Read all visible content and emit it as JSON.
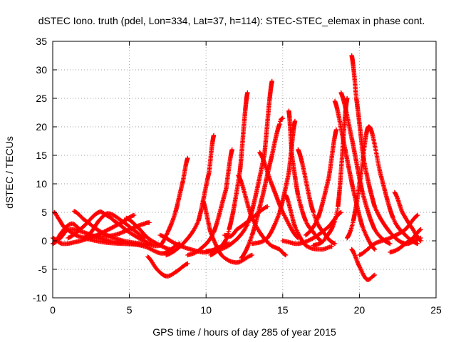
{
  "chart_data": {
    "type": "scatter",
    "title": "dSTEC Iono. truth (pdel, Lon=334, Lat=37, h=114): STEC-STEC_elemax in phase cont.",
    "xlabel": "GPS time / hours of day 285 of year 2015",
    "ylabel": "dSTEC  / TECUs",
    "xlim": [
      0,
      25
    ],
    "ylim": [
      -10,
      35
    ],
    "xticks": [
      "0",
      "5",
      "10",
      "15",
      "20",
      "25"
    ],
    "yticks": [
      "-10",
      "-5",
      "0",
      "5",
      "10",
      "15",
      "20",
      "25",
      "30",
      "35"
    ],
    "grid": true,
    "marker": "+",
    "color": "#ff0000",
    "arcs": [
      {
        "x": [
          0.0,
          0.6,
          1.5,
          2.5,
          3.5,
          4.5,
          5.3
        ],
        "y": [
          0.5,
          -0.5,
          -0.2,
          0.6,
          1.8,
          3.2,
          4.5
        ]
      },
      {
        "x": [
          0.0,
          0.5,
          1.0,
          2.0,
          3.0,
          4.0,
          5.0,
          6.0,
          7.2,
          8.3
        ],
        "y": [
          -0.5,
          0.5,
          2.0,
          1.5,
          0.5,
          -0.2,
          -0.5,
          -1.0,
          -2.2,
          -0.5
        ]
      },
      {
        "x": [
          0.1,
          0.3,
          0.7,
          1.5,
          2.5,
          3.5,
          4.5,
          5.5,
          6.2
        ],
        "y": [
          5.0,
          4.2,
          2.5,
          1.0,
          0.2,
          -0.3,
          -0.5,
          -0.6,
          -0.8
        ]
      },
      {
        "x": [
          0.2,
          0.5,
          0.9,
          1.3,
          1.8
        ],
        "y": [
          0.0,
          1.2,
          2.5,
          3.0,
          2.0
        ]
      },
      {
        "x": [
          1.4,
          2.0,
          3.0,
          4.0,
          5.0,
          5.5,
          6.0
        ],
        "y": [
          5.2,
          3.8,
          1.8,
          0.5,
          -0.2,
          -0.4,
          -0.6
        ]
      },
      {
        "x": [
          1.0,
          2.0,
          3.0,
          3.5,
          4.0,
          5.0,
          6.0,
          6.4
        ],
        "y": [
          0.5,
          2.5,
          5.0,
          4.5,
          3.5,
          1.5,
          0.0,
          -0.5
        ]
      },
      {
        "x": [
          2.0,
          2.5,
          3.0,
          3.6,
          4.5,
          5.5,
          6.0
        ],
        "y": [
          0.5,
          1.5,
          3.5,
          4.8,
          3.5,
          1.5,
          0.5
        ]
      },
      {
        "x": [
          2.3,
          3.0,
          4.0,
          5.0,
          6.0,
          6.3
        ],
        "y": [
          1.0,
          0.8,
          1.0,
          2.0,
          3.0,
          3.2
        ]
      },
      {
        "x": [
          4.8,
          5.5,
          6.2,
          7.0,
          7.8
        ],
        "y": [
          4.0,
          2.5,
          0.5,
          -0.8,
          -1.6
        ]
      },
      {
        "x": [
          6.2,
          6.8,
          7.4,
          8.0,
          8.8
        ],
        "y": [
          -2.8,
          -5.0,
          -6.2,
          -5.5,
          -4.0
        ]
      },
      {
        "x": [
          6.0,
          7.0,
          7.5,
          8.0,
          8.5,
          8.8
        ],
        "y": [
          -0.5,
          -0.8,
          1.5,
          5.0,
          10.5,
          14.5
        ]
      },
      {
        "x": [
          7.4,
          8.5,
          9.5,
          10.2,
          10.5
        ],
        "y": [
          -2.5,
          -0.5,
          3.5,
          12.0,
          18.5
        ]
      },
      {
        "x": [
          7.0,
          8.0,
          9.0,
          10.0,
          11.0,
          11.5
        ],
        "y": [
          1.0,
          -0.5,
          -1.5,
          -2.0,
          -1.0,
          -0.5
        ]
      },
      {
        "x": [
          8.8,
          9.6,
          10.5,
          11.3,
          11.7
        ],
        "y": [
          -2.5,
          -1.5,
          1.5,
          9.0,
          16.0
        ]
      },
      {
        "x": [
          9.8,
          10.3,
          11.0,
          12.0,
          13.0
        ],
        "y": [
          7.0,
          1.5,
          -2.5,
          -3.8,
          -2.5
        ]
      },
      {
        "x": [
          10.3,
          11.0,
          11.5,
          12.2,
          12.7
        ],
        "y": [
          -2.5,
          -1.0,
          2.0,
          12.0,
          26.0
        ]
      },
      {
        "x": [
          10.0,
          11.5,
          12.8,
          13.8,
          14.3
        ],
        "y": [
          -1.8,
          -0.8,
          3.5,
          15.0,
          28.0
        ]
      },
      {
        "x": [
          11.2,
          11.6,
          12.0,
          13.0,
          14.0
        ],
        "y": [
          1.0,
          0.8,
          2.0,
          4.0,
          6.0
        ]
      },
      {
        "x": [
          12.1,
          13.0,
          14.0,
          14.8,
          15.2
        ],
        "y": [
          11.5,
          4.0,
          -0.2,
          -1.5,
          -2.5
        ]
      },
      {
        "x": [
          12.3,
          13.0,
          13.7,
          14.3,
          14.8,
          15.0
        ],
        "y": [
          -3.0,
          1.0,
          8.0,
          15.0,
          20.5,
          21.5
        ]
      },
      {
        "x": [
          13.0,
          14.0,
          14.8,
          15.4,
          15.8
        ],
        "y": [
          -0.5,
          0.5,
          5.0,
          12.0,
          21.0
        ]
      },
      {
        "x": [
          13.5,
          14.2,
          15.0,
          16.0
        ],
        "y": [
          15.5,
          10.5,
          5.0,
          0.5
        ]
      },
      {
        "x": [
          15.2,
          15.8,
          16.5,
          17.5,
          18.2
        ],
        "y": [
          8.0,
          2.5,
          -0.8,
          -1.5,
          -1.0
        ]
      },
      {
        "x": [
          15.4,
          15.6,
          16.0,
          16.5,
          17.0,
          17.5
        ],
        "y": [
          22.8,
          15.0,
          8.0,
          3.5,
          1.5,
          0.0
        ]
      },
      {
        "x": [
          15.0,
          16.0,
          17.0,
          18.0,
          18.8
        ],
        "y": [
          0.0,
          -0.5,
          0.5,
          2.5,
          5.0
        ]
      },
      {
        "x": [
          16.0,
          17.0,
          17.8,
          18.4
        ],
        "y": [
          16.0,
          5.0,
          1.0,
          -0.5
        ]
      },
      {
        "x": [
          16.5,
          17.3,
          18.0,
          18.5
        ],
        "y": [
          1.0,
          4.0,
          11.0,
          19.5
        ]
      },
      {
        "x": [
          17.0,
          17.8,
          18.6,
          19.2
        ],
        "y": [
          -0.8,
          0.5,
          6.0,
          25.0
        ]
      },
      {
        "x": [
          18.4,
          19.0,
          19.6,
          20.2,
          21.0
        ],
        "y": [
          24.5,
          17.0,
          9.0,
          2.5,
          -1.5
        ]
      },
      {
        "x": [
          18.8,
          19.5,
          20.2,
          21.0,
          22.0
        ],
        "y": [
          26.0,
          18.0,
          8.5,
          2.0,
          -0.5
        ]
      },
      {
        "x": [
          19.2,
          19.6,
          20.0,
          20.6,
          21.4,
          22.2,
          23.0,
          23.8
        ],
        "y": [
          0.5,
          3.5,
          10.0,
          20.0,
          11.5,
          4.0,
          1.0,
          -0.5
        ]
      },
      {
        "x": [
          19.5,
          19.8,
          20.3,
          21.0,
          22.0,
          23.0,
          24.0
        ],
        "y": [
          32.5,
          25.0,
          14.0,
          6.0,
          1.5,
          -0.5,
          0.5
        ]
      },
      {
        "x": [
          19.5,
          20.0,
          20.5,
          21.0
        ],
        "y": [
          -1.5,
          -4.5,
          -6.8,
          -6.0
        ]
      },
      {
        "x": [
          20.0,
          21.0,
          22.0,
          23.0,
          23.8
        ],
        "y": [
          -2.5,
          -0.5,
          0.5,
          2.0,
          4.5
        ]
      },
      {
        "x": [
          22.3,
          22.8,
          23.5,
          24.0
        ],
        "y": [
          8.5,
          5.0,
          2.0,
          0.0
        ]
      },
      {
        "x": [
          22.0,
          22.5,
          23.0,
          23.5,
          24.0
        ],
        "y": [
          -2.0,
          -1.5,
          -0.5,
          0.5,
          2.0
        ]
      }
    ]
  }
}
